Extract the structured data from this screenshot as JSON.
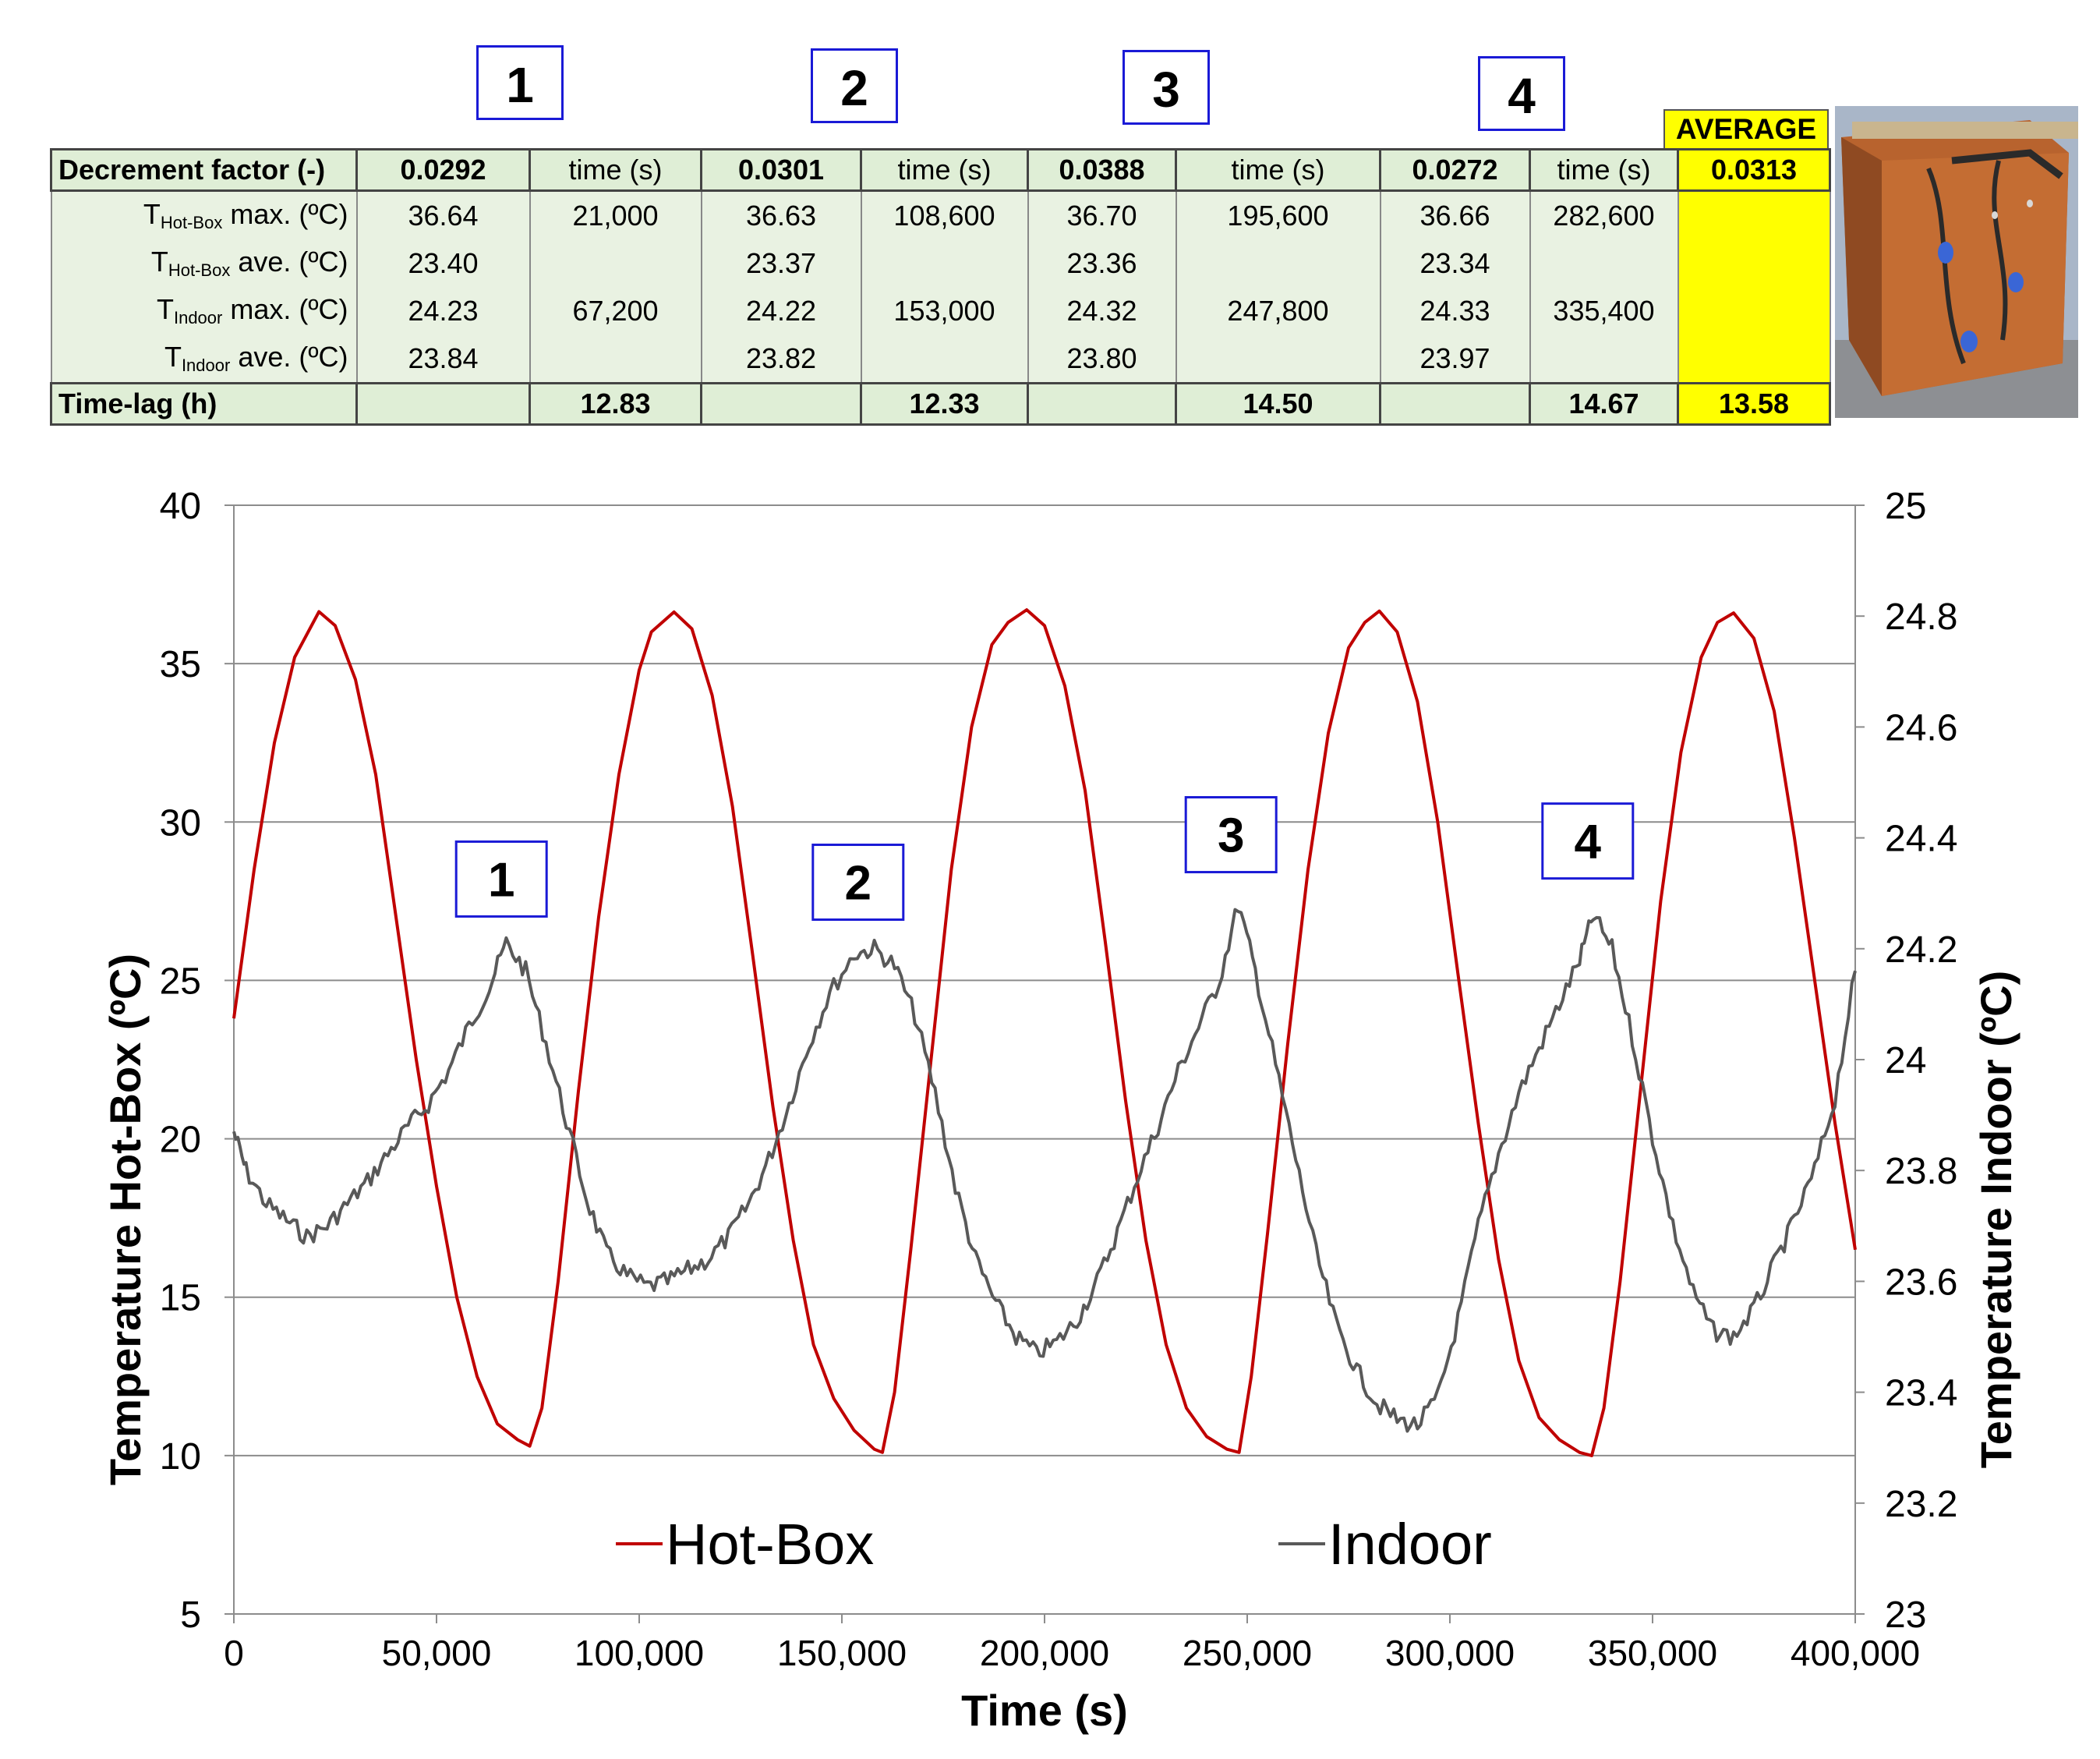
{
  "boxes": [
    "1",
    "2",
    "3",
    "4"
  ],
  "average_label": "AVERAGE",
  "table": {
    "header": {
      "label": "Decrement factor (-)",
      "time_label": "time (s)",
      "values": [
        "0.0292",
        "0.0301",
        "0.0388",
        "0.0272"
      ],
      "average": "0.0313"
    },
    "rows": [
      {
        "pre": "T",
        "sub": "Hot-Box",
        "post": " max. (ºC)",
        "values": [
          "36.64",
          "36.63",
          "36.70",
          "36.66"
        ],
        "times": [
          "21,000",
          "108,600",
          "195,600",
          "282,600"
        ]
      },
      {
        "pre": "T",
        "sub": "Hot-Box",
        "post": " ave. (ºC)",
        "values": [
          "23.40",
          "23.37",
          "23.36",
          "23.34"
        ],
        "times": [
          "",
          "",
          "",
          ""
        ]
      },
      {
        "pre": "T",
        "sub": "Indoor",
        "post": " max. (ºC)",
        "values": [
          "24.23",
          "24.22",
          "24.32",
          "24.33"
        ],
        "times": [
          "67,200",
          "153,000",
          "247,800",
          "335,400"
        ]
      },
      {
        "pre": "T",
        "sub": "Indoor",
        "post": " ave. (ºC)",
        "values": [
          "23.84",
          "23.82",
          "23.80",
          "23.97"
        ],
        "times": [
          "",
          "",
          "",
          ""
        ]
      }
    ],
    "footer": {
      "label": "Time-lag (h)",
      "values": [
        "12.83",
        "12.33",
        "14.50",
        "14.67"
      ],
      "average": "13.58"
    }
  },
  "chart_data": {
    "type": "line",
    "xlabel": "Time (s)",
    "ylabel": "Temperature Hot-Box (ºC)",
    "y2label": "Temperature Indoor (ºC)",
    "xlim": [
      0,
      400000
    ],
    "ylim": [
      5,
      40
    ],
    "y2lim": [
      23,
      25
    ],
    "x_ticks": [
      "0",
      "50,000",
      "100,000",
      "150,000",
      "200,000",
      "250,000",
      "300,000",
      "350,000",
      "400,000"
    ],
    "y_ticks": [
      "5",
      "10",
      "15",
      "20",
      "25",
      "30",
      "35",
      "40"
    ],
    "y2_ticks": [
      "23",
      "23.2",
      "23.4",
      "23.6",
      "23.8",
      "24",
      "24.2",
      "24.4",
      "24.6",
      "24.8",
      "25"
    ],
    "grid": "horizontal",
    "legend": "bottom-center",
    "annotations": [
      {
        "text": "1",
        "x": 66000,
        "y": 28.2
      },
      {
        "text": "2",
        "x": 154000,
        "y": 28.1
      },
      {
        "text": "3",
        "x": 246000,
        "y": 29.6
      },
      {
        "text": "4",
        "x": 334000,
        "y": 29.4
      }
    ],
    "series": [
      {
        "name": "Hot-Box",
        "axis": "left",
        "color": "#c00000",
        "x": [
          0,
          5000,
          10000,
          15000,
          21000,
          25000,
          30000,
          35000,
          40000,
          45000,
          50000,
          55000,
          60000,
          65000,
          70000,
          73000,
          76000,
          80000,
          85000,
          90000,
          95000,
          100000,
          103000,
          108600,
          113000,
          118000,
          123000,
          128000,
          133000,
          138000,
          143000,
          148000,
          153000,
          158000,
          160000,
          163000,
          167000,
          172000,
          177000,
          182000,
          187000,
          191000,
          195600,
          200000,
          205000,
          210000,
          215000,
          220000,
          225000,
          230000,
          235000,
          240000,
          245000,
          248000,
          251000,
          255000,
          260000,
          265000,
          270000,
          275000,
          279000,
          282600,
          287000,
          292000,
          297000,
          302000,
          307000,
          312000,
          317000,
          322000,
          327000,
          332000,
          335000,
          338000,
          342000,
          347000,
          352000,
          357000,
          362000,
          366000,
          370000,
          375000,
          380000,
          385000,
          390000,
          395000,
          400000
        ],
        "y": [
          23.8,
          28.5,
          32.5,
          35.2,
          36.64,
          36.2,
          34.5,
          31.5,
          27.0,
          22.5,
          18.5,
          15.0,
          12.5,
          11.0,
          10.5,
          10.3,
          11.5,
          15.5,
          21.5,
          27.0,
          31.5,
          34.8,
          36.0,
          36.63,
          36.1,
          34.0,
          30.5,
          25.8,
          21.0,
          16.8,
          13.5,
          11.8,
          10.8,
          10.2,
          10.1,
          12.0,
          16.5,
          22.5,
          28.5,
          33.0,
          35.6,
          36.3,
          36.7,
          36.2,
          34.3,
          31.0,
          26.2,
          21.2,
          16.8,
          13.5,
          11.5,
          10.6,
          10.2,
          10.1,
          12.5,
          17.0,
          23.0,
          28.5,
          32.8,
          35.5,
          36.3,
          36.66,
          36.0,
          33.8,
          30.0,
          25.2,
          20.5,
          16.2,
          13.0,
          11.2,
          10.5,
          10.1,
          10.0,
          11.5,
          15.5,
          21.5,
          27.5,
          32.2,
          35.2,
          36.3,
          36.6,
          35.8,
          33.5,
          29.5,
          25.0,
          20.5,
          16.5
        ]
      },
      {
        "name": "Indoor",
        "axis": "right",
        "color": "#595959",
        "x": [
          0,
          3000,
          8000,
          13000,
          18000,
          23000,
          28000,
          33000,
          38000,
          43000,
          48000,
          53000,
          58000,
          63000,
          67200,
          72000,
          77000,
          82000,
          87000,
          92000,
          97000,
          102000,
          107000,
          112000,
          117000,
          122000,
          127000,
          132000,
          137000,
          142000,
          147000,
          153000,
          158000,
          163000,
          168000,
          173000,
          178000,
          183000,
          188000,
          193000,
          198000,
          203000,
          208000,
          213000,
          218000,
          223000,
          228000,
          233000,
          238000,
          243000,
          247800,
          252000,
          257000,
          262000,
          267000,
          272000,
          277000,
          282000,
          287000,
          292000,
          297000,
          302000,
          307000,
          312000,
          317000,
          322000,
          327000,
          332000,
          335400,
          340000,
          345000,
          350000,
          355000,
          360000,
          365000,
          370000,
          375000,
          380000,
          385000,
          390000,
          395000,
          400000
        ],
        "y": [
          23.87,
          23.8,
          23.74,
          23.71,
          23.68,
          23.7,
          23.74,
          23.78,
          23.83,
          23.88,
          23.92,
          23.98,
          24.06,
          24.13,
          24.21,
          24.16,
          24.03,
          23.89,
          23.75,
          23.65,
          23.61,
          23.59,
          23.6,
          23.62,
          23.64,
          23.68,
          23.74,
          23.82,
          23.92,
          24.03,
          24.12,
          24.19,
          24.2,
          24.17,
          24.08,
          23.94,
          23.77,
          23.64,
          23.56,
          23.5,
          23.47,
          23.49,
          23.53,
          23.6,
          23.69,
          23.79,
          23.88,
          23.98,
          24.06,
          24.14,
          24.28,
          24.16,
          23.99,
          23.82,
          23.65,
          23.52,
          23.44,
          23.38,
          23.35,
          23.34,
          23.39,
          23.53,
          23.7,
          23.83,
          23.94,
          24.02,
          24.1,
          24.18,
          24.26,
          24.2,
          24.04,
          23.86,
          23.7,
          23.58,
          23.51,
          23.5,
          23.55,
          23.63,
          23.71,
          23.8,
          23.93,
          24.16
        ]
      }
    ]
  }
}
